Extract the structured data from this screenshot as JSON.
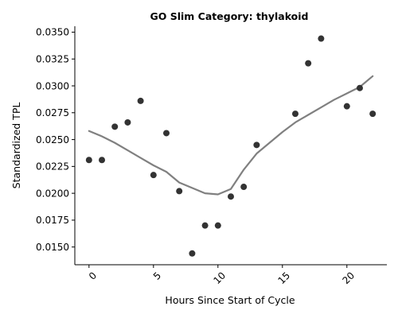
{
  "chart_data": {
    "type": "scatter",
    "title": "GO Slim Category: thylakoid",
    "xlabel": "Hours Since Start of Cycle",
    "ylabel": "Standardized TPL",
    "xlim": [
      -1.1,
      23.1
    ],
    "ylim": [
      0.01335,
      0.03555
    ],
    "x_ticks": [
      0,
      5,
      10,
      15,
      20
    ],
    "x_tick_labels": [
      "0",
      "5",
      "10",
      "15",
      "20"
    ],
    "y_ticks": [
      0.015,
      0.0175,
      0.02,
      0.0225,
      0.025,
      0.0275,
      0.03,
      0.0325,
      0.035
    ],
    "y_tick_labels": [
      "0.0150",
      "0.0175",
      "0.0200",
      "0.0225",
      "0.0250",
      "0.0275",
      "0.0300",
      "0.0325",
      "0.0350"
    ],
    "grid": false,
    "series": [
      {
        "kind": "points",
        "color": "#333333",
        "x": [
          0,
          1,
          2,
          3,
          4,
          5,
          6,
          7,
          8,
          9,
          10,
          11,
          12,
          13,
          16,
          17,
          18,
          20,
          21,
          22
        ],
        "y": [
          0.0231,
          0.0231,
          0.0262,
          0.0266,
          0.0286,
          0.0217,
          0.0256,
          0.0202,
          0.0144,
          0.017,
          0.017,
          0.0197,
          0.0206,
          0.0245,
          0.0274,
          0.0321,
          0.0344,
          0.0281,
          0.0298,
          0.0274
        ]
      },
      {
        "kind": "smooth-line",
        "color": "#808080",
        "x": [
          0,
          1,
          2,
          3,
          4,
          5,
          6,
          7,
          8,
          9,
          10,
          11,
          12,
          13,
          14,
          15,
          16,
          17,
          18,
          19,
          20,
          21,
          22
        ],
        "y": [
          0.0258,
          0.0253,
          0.0247,
          0.024,
          0.0233,
          0.0226,
          0.022,
          0.021,
          0.0205,
          0.02,
          0.0199,
          0.0204,
          0.0222,
          0.0237,
          0.0247,
          0.0257,
          0.0266,
          0.0273,
          0.028,
          0.0287,
          0.0293,
          0.0299,
          0.0309
        ]
      }
    ]
  }
}
